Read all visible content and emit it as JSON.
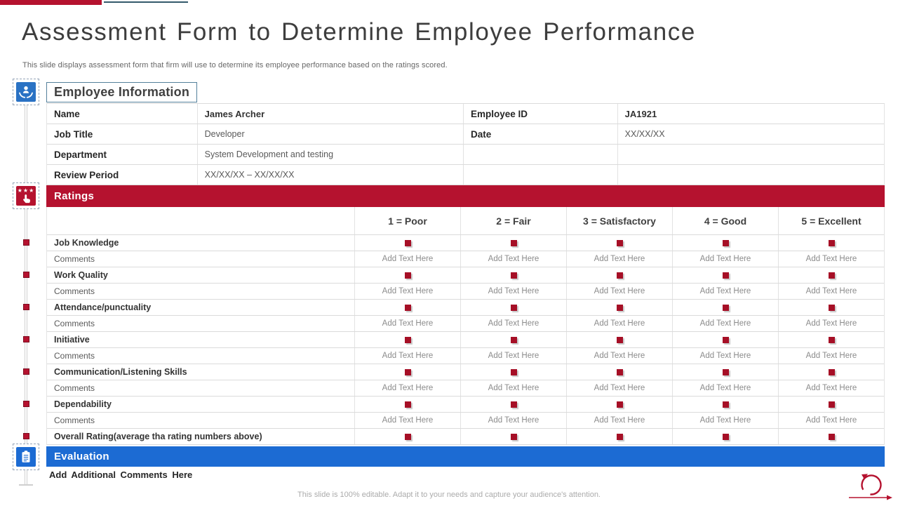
{
  "slide": {
    "title": "Assessment Form to Determine Employee Performance",
    "subtitle": "This slide displays assessment form that firm will use to determine its employee performance based on the ratings scored.",
    "footer_note": "This slide is 100% editable. Adapt it to your needs and capture your audience's attention."
  },
  "colors": {
    "accent_red": "#B5122F",
    "checkbox_red": "#A60F26",
    "accent_blue": "#1C6BD3",
    "icon_blue": "#2A72C4",
    "teal_rule": "#33596B",
    "title_box_border": "#54809B"
  },
  "icon_rail": {
    "employee_icon": "hands-holding-person",
    "ratings_icon": "tap-hand-with-stars",
    "evaluation_icon": "clipboard",
    "stars_glyph": "★★★"
  },
  "employee_info": {
    "section_title": "Employee Information",
    "rows": [
      [
        "Name",
        "James Archer",
        "Employee ID",
        "JA1921"
      ],
      [
        "Job Title",
        "Developer",
        "Date",
        "XX/XX/XX"
      ],
      [
        "Department",
        "System Development and testing",
        "",
        ""
      ],
      [
        "Review Period",
        "XX/XX/XX – XX/XX/XX",
        "",
        ""
      ]
    ],
    "bold_values": [
      "James Archer",
      "JA1921"
    ]
  },
  "ratings": {
    "section_title": "Ratings",
    "scale_headers": [
      "1 = Poor",
      "2 = Fair",
      "3 = Satisfactory",
      "4 = Good",
      "5 = Excellent"
    ],
    "criteria": [
      "Job Knowledge",
      "Work Quality",
      "Attendance/punctuality",
      "Initiative",
      "Communication/Listening Skills",
      "Dependability"
    ],
    "comments_label": "Comments",
    "comment_placeholder": "Add Text Here",
    "overall_label": "Overall Rating(average tha rating numbers above)"
  },
  "evaluation": {
    "section_title": "Evaluation",
    "placeholder": "Add Additional Comments Here"
  }
}
